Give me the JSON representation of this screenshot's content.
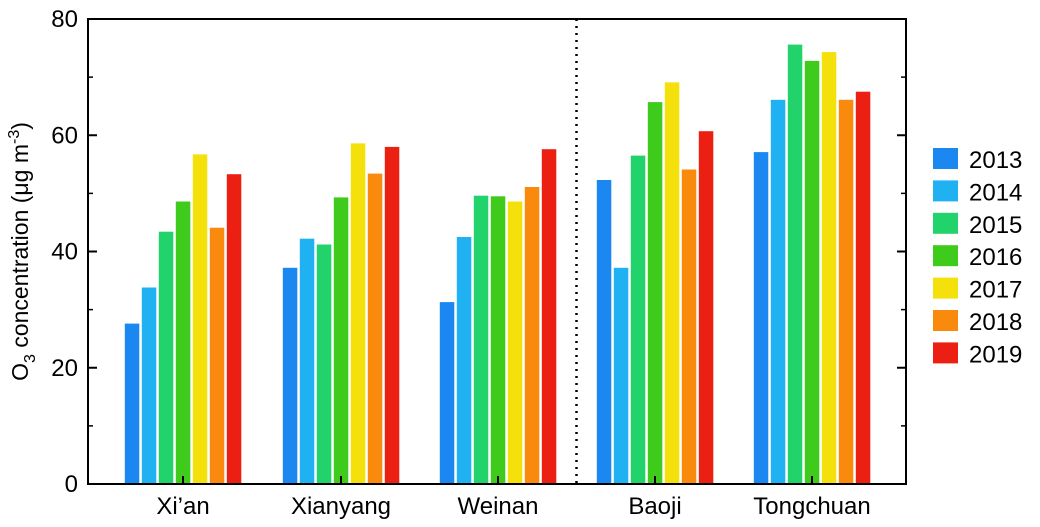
{
  "chart_data": {
    "type": "bar",
    "title": "",
    "xlabel": "",
    "ylabel": {
      "prefix": "O",
      "sub": "3",
      "middle": " concentration (μg m",
      "sup": "-3",
      "suffix": ")"
    },
    "ylim": [
      0,
      80
    ],
    "yticks": [
      "0",
      "20",
      "40",
      "60",
      "80"
    ],
    "categories": [
      "Xi’an",
      "Xianyang",
      "Weinan",
      "Baoji",
      "Tongchuan"
    ],
    "divider_after_category": 2,
    "legend_position": "right",
    "grid": false,
    "series": [
      {
        "name": "2013",
        "color": "#1a88f0",
        "values": [
          27.6,
          37.2,
          31.3,
          52.3,
          57.1
        ]
      },
      {
        "name": "2014",
        "color": "#1fb1f2",
        "values": [
          33.8,
          42.2,
          42.5,
          37.2,
          66.1
        ]
      },
      {
        "name": "2015",
        "color": "#22d36b",
        "values": [
          43.4,
          41.2,
          49.6,
          56.5,
          75.6
        ]
      },
      {
        "name": "2016",
        "color": "#3fcb1b",
        "values": [
          48.6,
          49.3,
          49.5,
          65.7,
          72.8
        ]
      },
      {
        "name": "2017",
        "color": "#f4e00a",
        "values": [
          56.7,
          58.6,
          48.6,
          69.1,
          74.3
        ]
      },
      {
        "name": "2018",
        "color": "#fa8a0e",
        "values": [
          44.1,
          53.4,
          51.1,
          54.1,
          66.1
        ]
      },
      {
        "name": "2019",
        "color": "#ec2012",
        "values": [
          53.3,
          58.0,
          57.6,
          60.7,
          67.5
        ]
      }
    ]
  }
}
